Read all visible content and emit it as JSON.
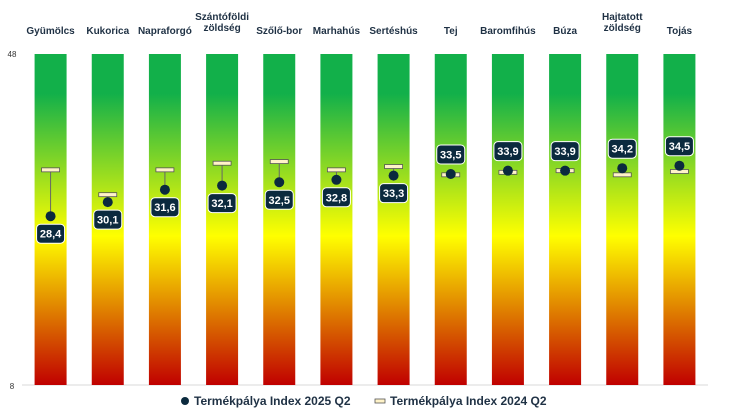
{
  "chart_data": {
    "type": "range-dot",
    "categories": [
      "Gyümölcs",
      "Kukorica",
      "Napraforgó",
      "Szántóföldi zöldség",
      "Szőlő-bor",
      "Marhahús",
      "Sertéshús",
      "Tej",
      "Baromfihús",
      "Búza",
      "Hajtatott zöldség",
      "Tojás"
    ],
    "series": [
      {
        "name": "Termékpálya Index 2025 Q2",
        "marker": "dot",
        "values": [
          28.4,
          30.1,
          31.6,
          32.1,
          32.5,
          32.8,
          33.3,
          33.5,
          33.9,
          33.9,
          34.2,
          34.5
        ],
        "labels": [
          "28,4",
          "30,1",
          "31,6",
          "32,1",
          "32,5",
          "32,8",
          "33,3",
          "33,5",
          "33,9",
          "33,9",
          "34,2",
          "34,5"
        ]
      },
      {
        "name": "Termékpálya Index 2024 Q2",
        "marker": "bar",
        "values": [
          34.0,
          31.0,
          34.0,
          34.8,
          35.0,
          34.0,
          34.4,
          33.4,
          33.7,
          33.9,
          33.4,
          33.8
        ]
      }
    ],
    "ylim": [
      8,
      48
    ],
    "yticks": [
      "48",
      "8"
    ],
    "legend_position": "bottom-center",
    "colors": {
      "gradient_top": "#12b04a",
      "gradient_mid": "#ffff00",
      "gradient_bottom": "#c00000",
      "dot": "#0b2a3e",
      "label_box": "#0b2a3e",
      "label_text": "#ffffff",
      "prev_marker_fill": "#fff3c8",
      "prev_marker_stroke": "#555555",
      "connector": "#666666"
    }
  }
}
